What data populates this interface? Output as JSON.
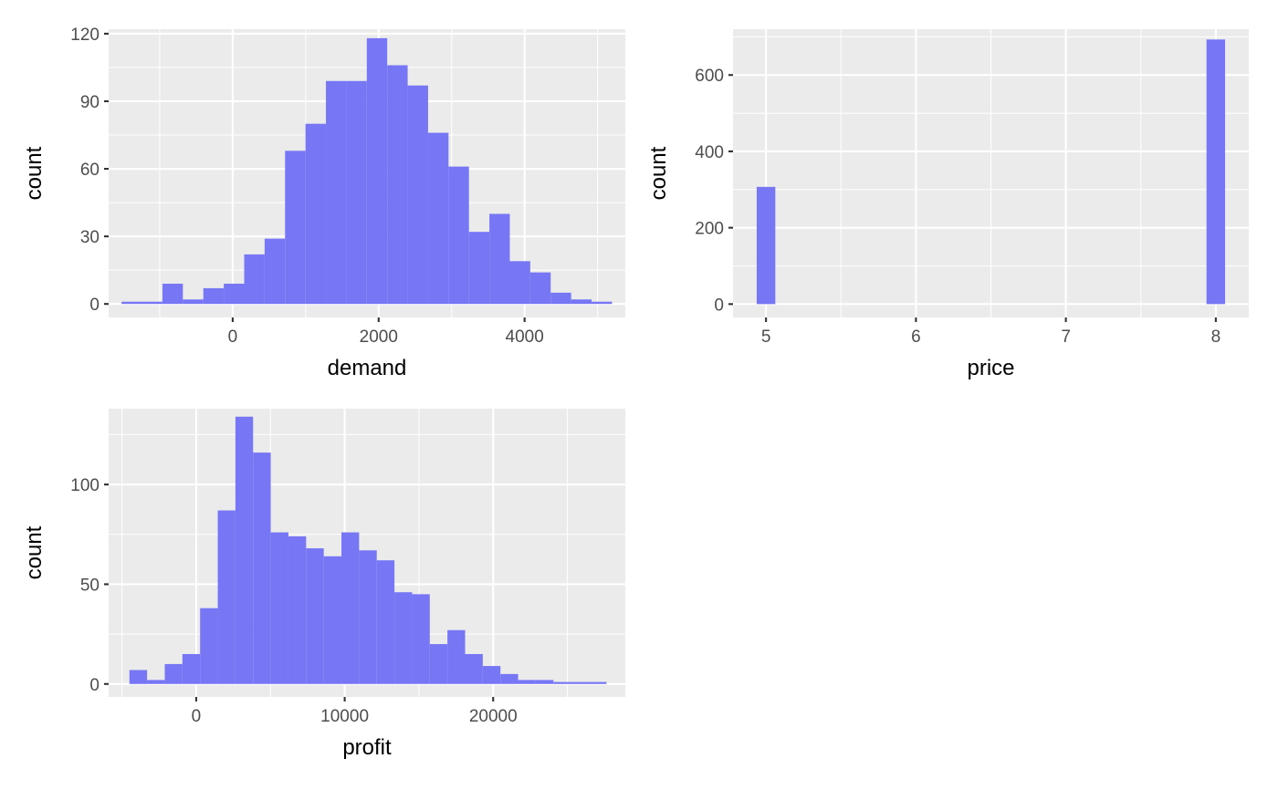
{
  "colors": {
    "bar_fill": "#7777f6",
    "panel_background": "#ebebeb",
    "grid": "#ffffff",
    "tick_text": "#4d4d4d",
    "axis_title": "#000000"
  },
  "chart_data": [
    {
      "id": "demand",
      "type": "bar",
      "histogram": true,
      "xlabel": "demand",
      "ylabel": "count",
      "xlim": [
        -1700,
        5380
      ],
      "ylim": [
        -6,
        122
      ],
      "x_ticks": [
        0,
        2000,
        4000
      ],
      "x_tick_labels": [
        "0",
        "2000",
        "4000"
      ],
      "y_ticks": [
        0,
        30,
        60,
        90,
        120
      ],
      "y_tick_labels": [
        "0",
        "30",
        "60",
        "90",
        "120"
      ],
      "grid": true,
      "bin_edges": [
        -1522.5,
        -1242.5,
        -962.5,
        -682.5,
        -402.5,
        -122.5,
        157.5,
        437.5,
        717.5,
        997.5,
        1277.5,
        1557.5,
        1837.5,
        2117.5,
        2397.5,
        2677.5,
        2957.5,
        3237.5,
        3517.5,
        3797.5,
        4077.5,
        4357.5,
        4637.5,
        4917.5,
        5197.5
      ],
      "values": [
        1,
        1,
        9,
        2,
        7,
        9,
        22,
        29,
        68,
        80,
        99,
        99,
        118,
        106,
        97,
        76,
        61,
        32,
        40,
        19,
        14,
        5,
        2,
        1
      ]
    },
    {
      "id": "price",
      "type": "bar",
      "histogram": true,
      "xlabel": "price",
      "ylabel": "count",
      "xlim": [
        4.78,
        8.22
      ],
      "ylim": [
        -35,
        720
      ],
      "x_ticks": [
        5,
        6,
        7,
        8
      ],
      "x_tick_labels": [
        "5",
        "6",
        "7",
        "8"
      ],
      "y_ticks": [
        0,
        200,
        400,
        600
      ],
      "y_tick_labels": [
        "0",
        "200",
        "400",
        "600"
      ],
      "grid": true,
      "bin_edges": [
        4.9379,
        5.0621,
        7.9379,
        8.0621
      ],
      "values": [
        307,
        0,
        693
      ]
    },
    {
      "id": "profit",
      "type": "bar",
      "histogram": true,
      "xlabel": "profit",
      "ylabel": "count",
      "xlim": [
        -5900,
        28900
      ],
      "ylim": [
        -6.5,
        138
      ],
      "x_ticks": [
        0,
        10000,
        20000
      ],
      "x_tick_labels": [
        "0",
        "10000",
        "20000"
      ],
      "y_ticks": [
        0,
        50,
        100
      ],
      "y_tick_labels": [
        "0",
        "50",
        "100"
      ],
      "grid": true,
      "bin_edges": [
        -4500,
        -3310,
        -2120,
        -930,
        260,
        1450,
        2640,
        3830,
        5020,
        6210,
        7400,
        8590,
        9780,
        10970,
        12160,
        13350,
        14540,
        15730,
        16920,
        18110,
        19300,
        20490,
        21680,
        22870,
        24060,
        25250,
        26440,
        27630
      ],
      "values": [
        7,
        2,
        10,
        15,
        38,
        87,
        134,
        116,
        76,
        74,
        68,
        64,
        76,
        67,
        62,
        46,
        45,
        20,
        27,
        15,
        9,
        5,
        2,
        2,
        1,
        1,
        1
      ]
    }
  ]
}
